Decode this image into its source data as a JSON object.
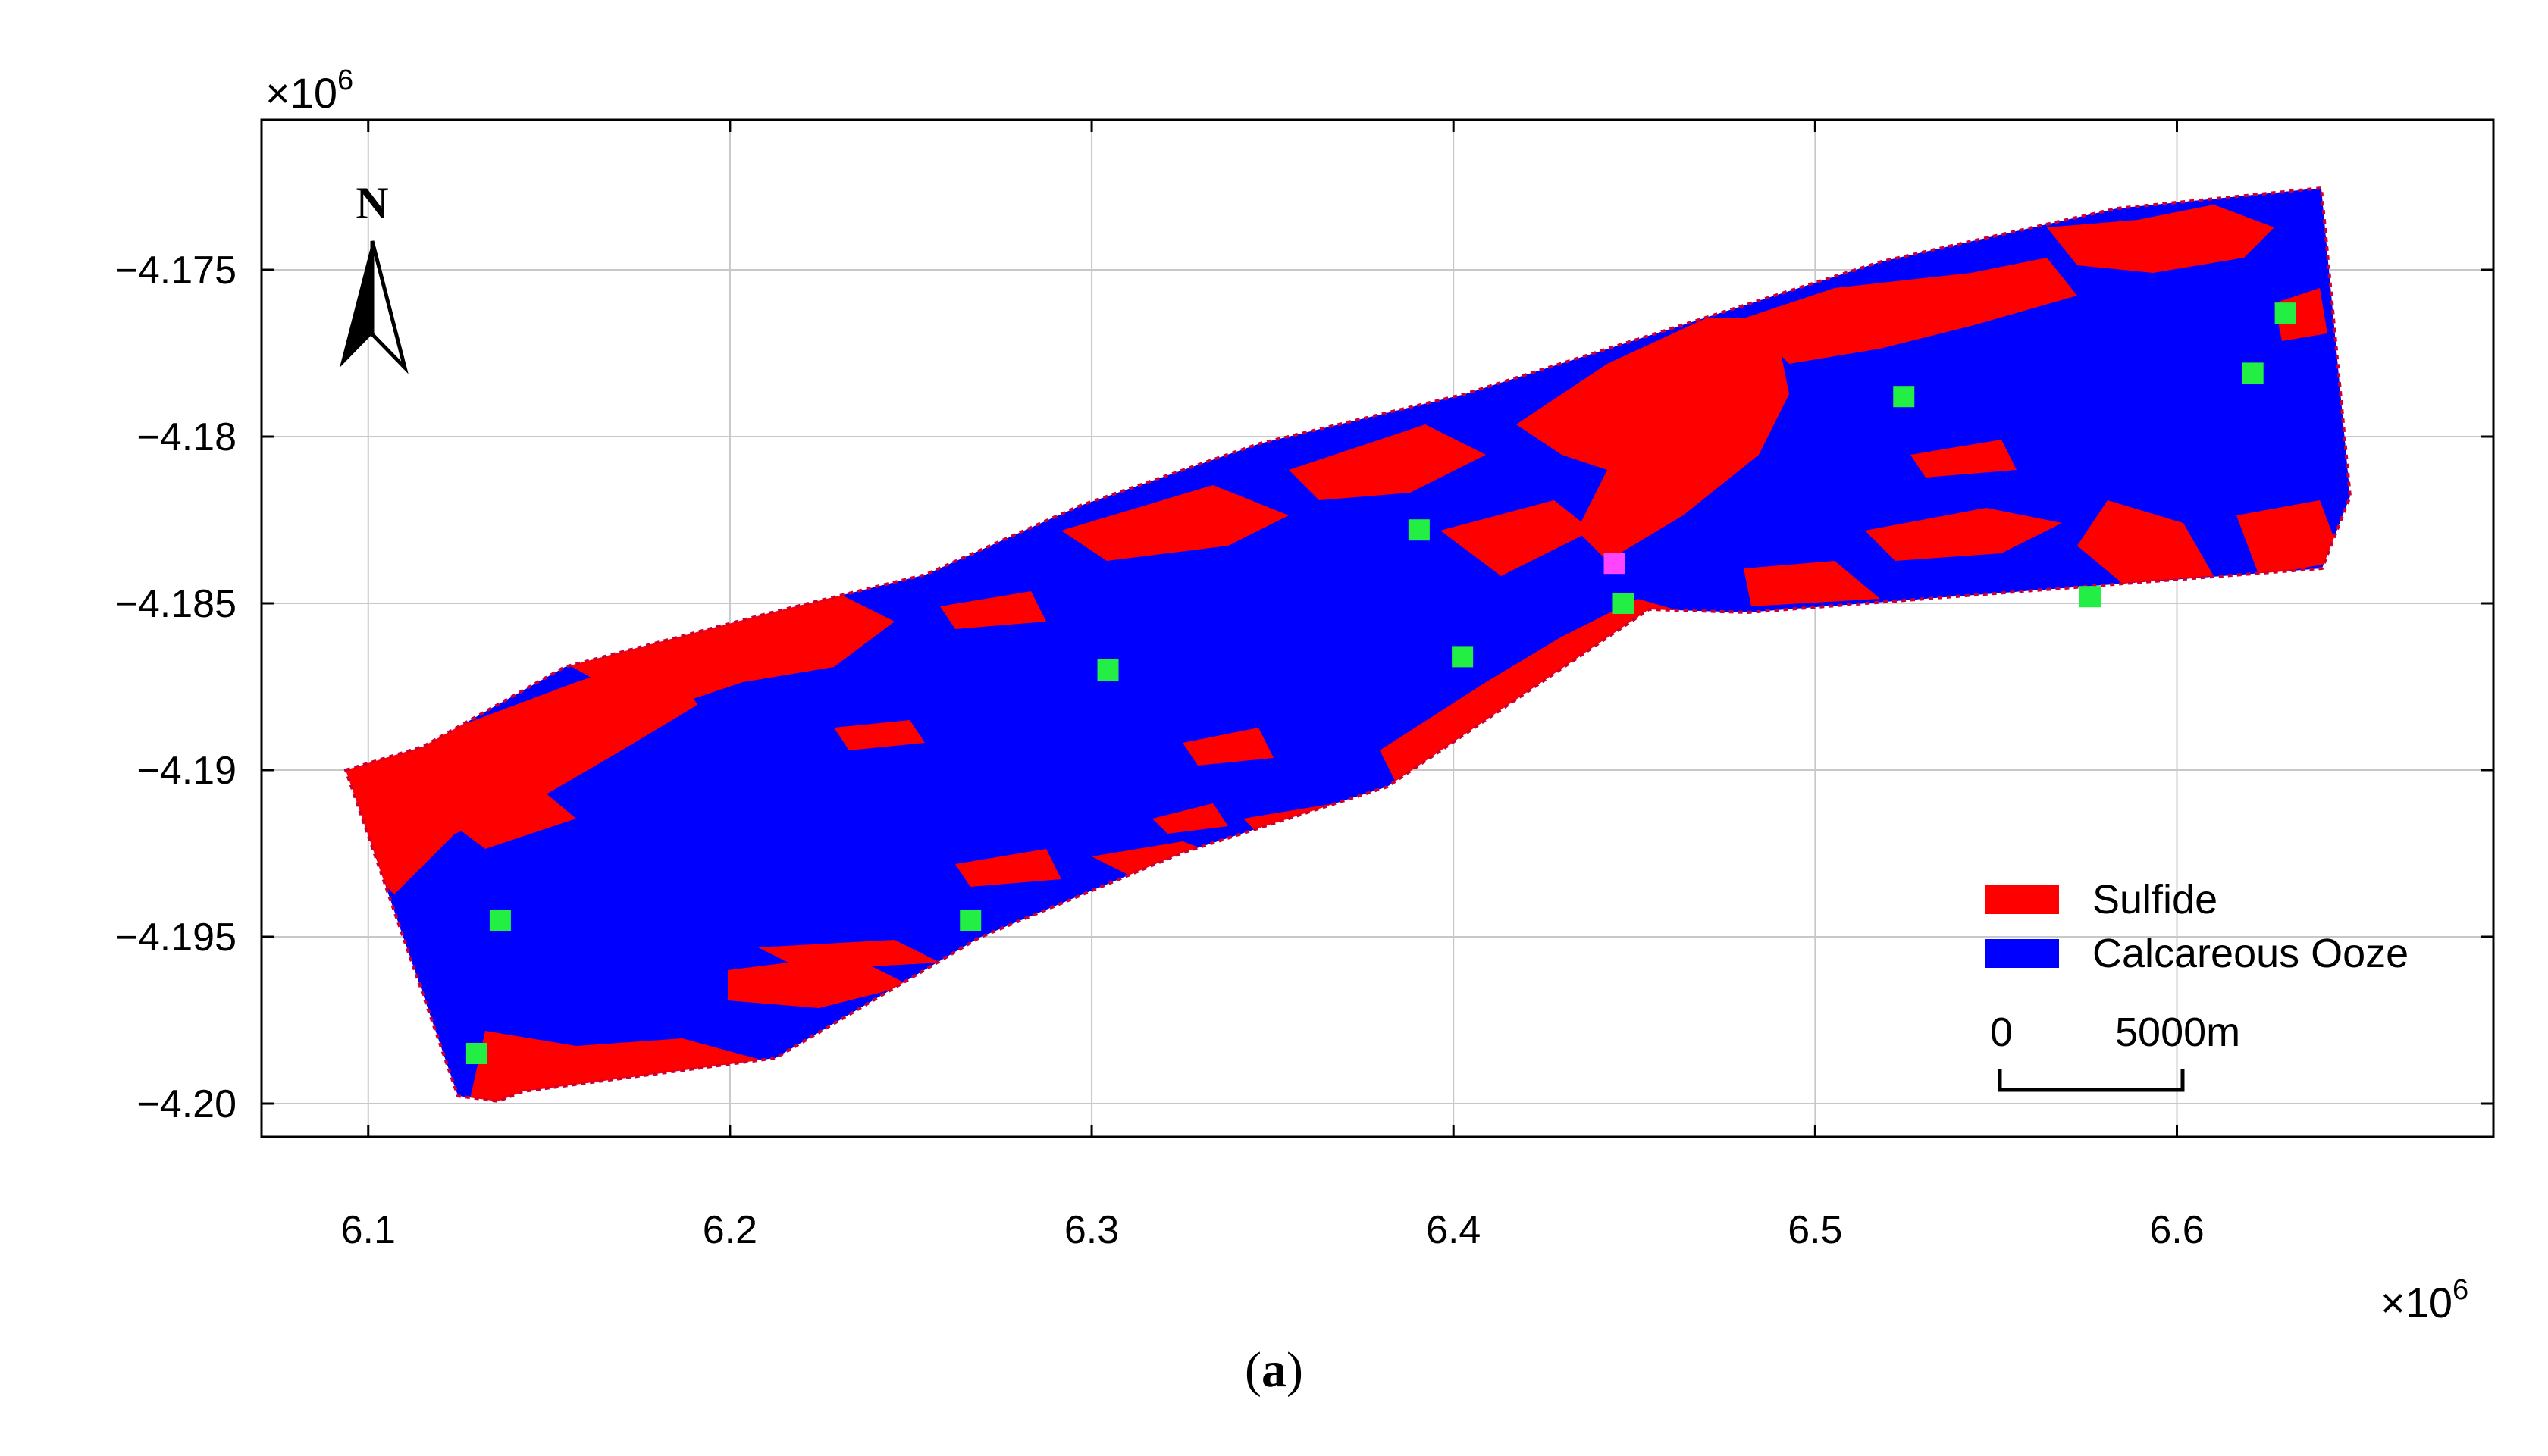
{
  "caption": {
    "open": "(",
    "letter": "a",
    "close": ")"
  },
  "axes": {
    "x_multiplier": "×10",
    "x_multiplier_exp": "6",
    "y_multiplier": "×10",
    "y_multiplier_exp": "6",
    "x_ticks": [
      "6.1",
      "6.2",
      "6.3",
      "6.4",
      "6.5",
      "6.6"
    ],
    "y_ticks": [
      "−4.175",
      "−4.18",
      "−4.185",
      "−4.19",
      "−4.195",
      "−4.20"
    ],
    "xlim": [
      6.0705,
      6.6875
    ],
    "ylim": [
      -4.201,
      -4.1705
    ],
    "grid": true
  },
  "north_arrow": {
    "label": "N"
  },
  "legend": {
    "placement": "bottom-right",
    "items": [
      {
        "label": "Sulfide",
        "color": "#ff0000"
      },
      {
        "label": "Calcareous Ooze",
        "color": "#0000ff"
      }
    ]
  },
  "scale_bar": {
    "start_label": "0",
    "end_label": "5000m"
  },
  "chart_data": {
    "type": "map",
    "classes": [
      {
        "name": "Sulfide",
        "color": "#ff0000"
      },
      {
        "name": "Calcareous Ooze",
        "color": "#0000ff"
      }
    ],
    "sample_points": [
      {
        "x": 6.1365,
        "y": -4.1945,
        "color": "#22ee44"
      },
      {
        "x": 6.13,
        "y": -4.1985,
        "color": "#22ee44"
      },
      {
        "x": 6.2665,
        "y": -4.1945,
        "color": "#22ee44"
      },
      {
        "x": 6.3045,
        "y": -4.187,
        "color": "#22ee44"
      },
      {
        "x": 6.3905,
        "y": -4.1828,
        "color": "#22ee44"
      },
      {
        "x": 6.4025,
        "y": -4.1866,
        "color": "#22ee44"
      },
      {
        "x": 6.447,
        "y": -4.185,
        "color": "#22ee44"
      },
      {
        "x": 6.5245,
        "y": -4.1788,
        "color": "#22ee44"
      },
      {
        "x": 6.576,
        "y": -4.1848,
        "color": "#22ee44"
      },
      {
        "x": 6.621,
        "y": -4.1781,
        "color": "#22ee44"
      },
      {
        "x": 6.63,
        "y": -4.1763,
        "color": "#22ee44"
      },
      {
        "x": 6.4445,
        "y": -4.1838,
        "color": "#ff44ff"
      }
    ]
  }
}
